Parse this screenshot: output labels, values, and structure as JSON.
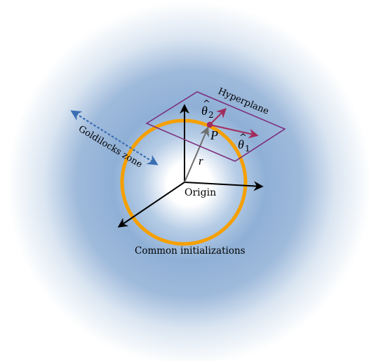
{
  "labels": {
    "hyperplane": "Hyperplane",
    "goldilocks_zone": "Goldilocks zone",
    "origin": "Origin",
    "common_initializations": "Common initializations",
    "point": "P",
    "radius": "r",
    "theta": "θ",
    "theta_hat": "^",
    "theta1_subscript": "1",
    "theta2_subscript": "2"
  },
  "colors": {
    "background_center": "#ffffff",
    "background_halo": "#8fb0d6",
    "background_edge": "#ffffff",
    "ring": "#f5a000",
    "hyperplane": "#7a2b7a",
    "theta_vectors": "#a12d5e",
    "point": "#a12d5e",
    "radius_vector": "#6e6e6e",
    "axes": "#000000",
    "goldilocks_arrow": "#3a6eb3"
  },
  "icons": {
    "axes": "coordinate-axes-icon",
    "goldilocks": "double-arrow-icon"
  }
}
